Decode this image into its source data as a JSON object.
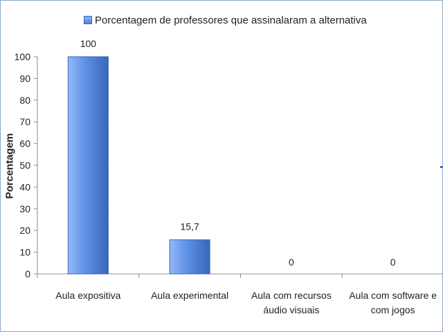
{
  "chart_data": {
    "type": "bar",
    "categories": [
      [
        "Aula expositiva"
      ],
      [
        "Aula experimental"
      ],
      [
        "Aula com recursos",
        "áudio visuais"
      ],
      [
        "Aula com software e",
        "com jogos"
      ]
    ],
    "series": [
      {
        "name": "Porcentagem de professores que assinalaram a alternativa",
        "values": [
          100,
          15.7,
          0,
          0
        ],
        "data_labels": [
          "100",
          "15,7",
          "0",
          "0"
        ]
      }
    ],
    "ylabel": "Porcentagem",
    "ylim": [
      0,
      100
    ],
    "yticks": [
      0,
      10,
      20,
      30,
      40,
      50,
      60,
      70,
      80,
      90,
      100
    ],
    "grid": false,
    "legend_position": "top",
    "colors": {
      "bar": "#5b8fe6",
      "bar_light": "#94b8f5",
      "bar_border": "#3a66b8",
      "axis": "#8c8c8c"
    }
  }
}
